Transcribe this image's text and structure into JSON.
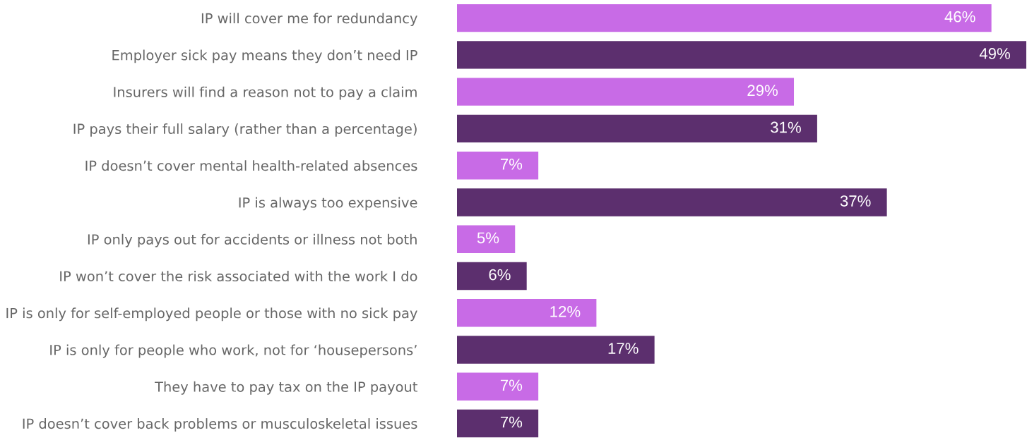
{
  "chart_data": {
    "type": "bar",
    "orientation": "horizontal",
    "tick_labels": "y",
    "grid": false,
    "value_labels": [
      "46%",
      "49%",
      "29%",
      "31%",
      "7%",
      "37%",
      "5%",
      "6%",
      "12%",
      "17%",
      "7%",
      "7%"
    ],
    "categories": [
      "IP will cover me for redundancy",
      "Employer sick pay means they don’t need IP",
      "Insurers will find a reason not to pay a claim",
      "IP pays their full salary (rather than a percentage)",
      "IP doesn’t cover mental health-related absences",
      "IP is always too expensive",
      "IP only pays out for accidents or illness not both",
      "IP won’t cover the risk associated with the work I do",
      "IP is only for self-employed people or those with no sick pay",
      "IP is only for people who work, not for ‘housepersons’",
      "They have to pay tax on the IP payout",
      "IP doesn’t cover back problems or musculoskeletal issues"
    ],
    "values": [
      46,
      49,
      29,
      31,
      7,
      37,
      5,
      6,
      12,
      17,
      7,
      7
    ],
    "colors": [
      "#c86be6",
      "#5c2f6e",
      "#c86be6",
      "#5c2f6e",
      "#c86be6",
      "#5c2f6e",
      "#c86be6",
      "#5c2f6e",
      "#c86be6",
      "#5c2f6e",
      "#c86be6",
      "#5c2f6e"
    ]
  }
}
